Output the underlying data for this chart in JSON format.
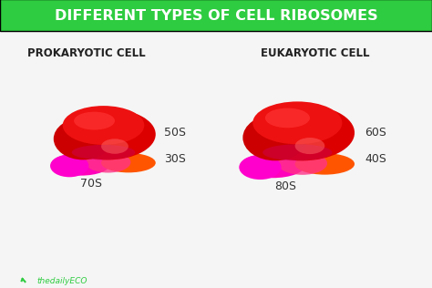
{
  "title": "DIFFERENT TYPES OF CELL RIBOSOMES",
  "title_bg": "#2ecc40",
  "title_color": "#ffffff",
  "bg_color": "#f5f5f5",
  "left_label": "PROKARYOTIC CELL",
  "right_label": "EUKARYOTIC CELL",
  "left_subunit_large": "50S",
  "left_subunit_small": "30S",
  "left_total": "70S",
  "right_subunit_large": "60S",
  "right_subunit_small": "40S",
  "right_total": "80S",
  "large_subunit_color_top": "#ff2200",
  "large_subunit_color_bottom": "#cc0000",
  "small_subunit_color_left": "#ff00aa",
  "small_subunit_color_right": "#ff6600",
  "watermark": "thedailyECO",
  "label_color": "#222222",
  "subunit_label_color": "#333333"
}
